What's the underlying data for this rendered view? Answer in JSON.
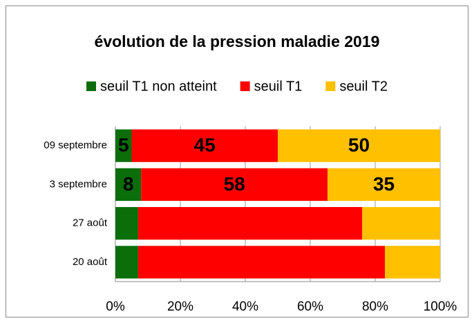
{
  "chart_data": {
    "type": "bar",
    "orientation": "horizontal",
    "stacked": "percent",
    "title": "évolution de la pression maladie 2019",
    "categories": [
      "09 septembre",
      "3 septembre",
      "27 août",
      "20 août"
    ],
    "series": [
      {
        "name": "seuil T1 non atteint",
        "color": "#0b6e0b",
        "values": [
          5,
          8,
          7,
          7
        ]
      },
      {
        "name": "seuil T1",
        "color": "#ff0000",
        "values": [
          45,
          58,
          69,
          76
        ]
      },
      {
        "name": "seuil T2",
        "color": "#ffc000",
        "values": [
          50,
          35,
          24,
          17
        ]
      }
    ],
    "data_labels": [
      true,
      true,
      false,
      false
    ],
    "xlim": [
      0,
      100
    ],
    "xticks": [
      {
        "value": 0,
        "label": "0%"
      },
      {
        "value": 20,
        "label": "20%"
      },
      {
        "value": 40,
        "label": "40%"
      },
      {
        "value": 60,
        "label": "60%"
      },
      {
        "value": 80,
        "label": "80%"
      },
      {
        "value": 100,
        "label": "100%"
      }
    ],
    "grid": true,
    "legend": "top"
  }
}
